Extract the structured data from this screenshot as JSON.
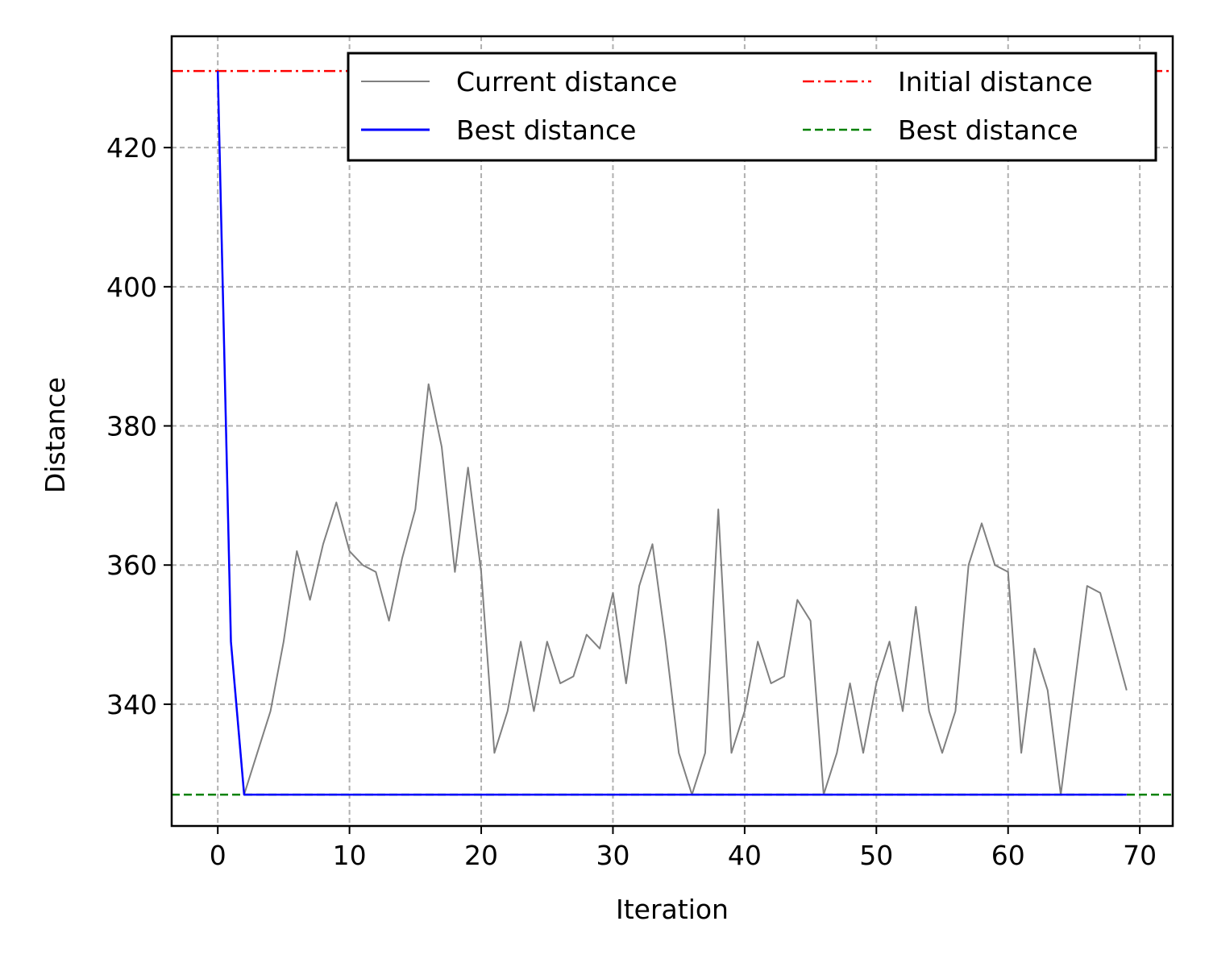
{
  "chart_data": {
    "type": "line",
    "xlabel": "Iteration",
    "ylabel": "Distance",
    "xlim": [
      -3.5,
      72.5
    ],
    "ylim": [
      322.5,
      436.0
    ],
    "xticks": [
      0,
      10,
      20,
      30,
      40,
      50,
      60,
      70
    ],
    "yticks": [
      340,
      360,
      380,
      400,
      420
    ],
    "grid": true,
    "legend": {
      "placement": "top-right",
      "columns": 2,
      "entries": [
        {
          "label": "Current distance",
          "color": "#808080",
          "style": "solid"
        },
        {
          "label": "Best distance",
          "color": "#0000ff",
          "style": "solid"
        },
        {
          "label": "Initial distance",
          "color": "#ff0000",
          "style": "dashdot"
        },
        {
          "label": "Best distance",
          "color": "#008000",
          "style": "dashed"
        }
      ]
    },
    "series": [
      {
        "name": "Current distance",
        "color": "#808080",
        "style": "solid",
        "x": [
          0,
          1,
          2,
          3,
          4,
          5,
          6,
          7,
          8,
          9,
          10,
          11,
          12,
          13,
          14,
          15,
          16,
          17,
          18,
          19,
          20,
          21,
          22,
          23,
          24,
          25,
          26,
          27,
          28,
          29,
          30,
          31,
          32,
          33,
          34,
          35,
          36,
          37,
          38,
          39,
          40,
          41,
          42,
          43,
          44,
          45,
          46,
          47,
          48,
          49,
          50,
          51,
          52,
          53,
          54,
          55,
          56,
          57,
          58,
          59,
          60,
          61,
          62,
          63,
          64,
          65,
          66,
          67,
          68,
          69
        ],
        "y": [
          431,
          349,
          327,
          333,
          339,
          349,
          362,
          355,
          363,
          369,
          362,
          360,
          359,
          352,
          361,
          368,
          386,
          377,
          359,
          374,
          359,
          333,
          339,
          349,
          339,
          349,
          343,
          344,
          350,
          348,
          356,
          343,
          357,
          363,
          349,
          333,
          327,
          333,
          368,
          333,
          339,
          349,
          343,
          344,
          355,
          352,
          327,
          333,
          343,
          333,
          343,
          349,
          339,
          354,
          339,
          333,
          339,
          360,
          366,
          360,
          359,
          333,
          348,
          342,
          327,
          342,
          357,
          356,
          349,
          342
        ]
      },
      {
        "name": "Best distance",
        "color": "#0000ff",
        "style": "solid",
        "x": [
          0,
          1,
          2,
          3,
          4,
          5,
          6,
          7,
          8,
          9,
          10,
          11,
          12,
          13,
          14,
          15,
          16,
          17,
          18,
          19,
          20,
          21,
          22,
          23,
          24,
          25,
          26,
          27,
          28,
          29,
          30,
          31,
          32,
          33,
          34,
          35,
          36,
          37,
          38,
          39,
          40,
          41,
          42,
          43,
          44,
          45,
          46,
          47,
          48,
          49,
          50,
          51,
          52,
          53,
          54,
          55,
          56,
          57,
          58,
          59,
          60,
          61,
          62,
          63,
          64,
          65,
          66,
          67,
          68,
          69
        ],
        "y": [
          431,
          349,
          327,
          327,
          327,
          327,
          327,
          327,
          327,
          327,
          327,
          327,
          327,
          327,
          327,
          327,
          327,
          327,
          327,
          327,
          327,
          327,
          327,
          327,
          327,
          327,
          327,
          327,
          327,
          327,
          327,
          327,
          327,
          327,
          327,
          327,
          327,
          327,
          327,
          327,
          327,
          327,
          327,
          327,
          327,
          327,
          327,
          327,
          327,
          327,
          327,
          327,
          327,
          327,
          327,
          327,
          327,
          327,
          327,
          327,
          327,
          327,
          327,
          327,
          327,
          327,
          327,
          327,
          327,
          327
        ]
      },
      {
        "name": "Initial distance",
        "color": "#ff0000",
        "style": "dashdot",
        "hline": 431
      },
      {
        "name": "Best distance",
        "color": "#008000",
        "style": "dashed",
        "hline": 327
      }
    ]
  }
}
